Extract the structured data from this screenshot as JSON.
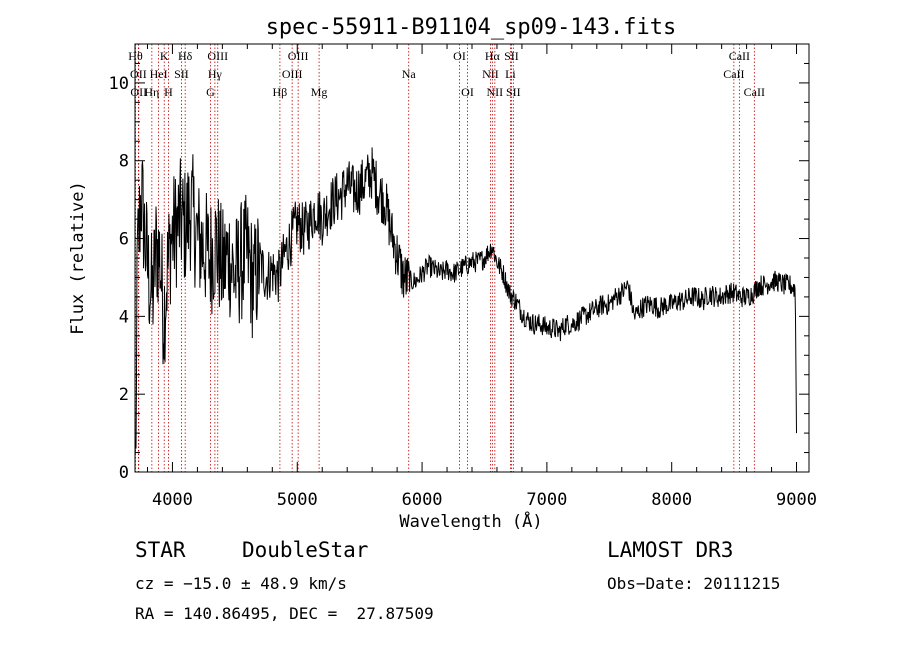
{
  "chart_data": {
    "type": "line",
    "title": "spec-55911-B91104_sp09-143.fits",
    "xlabel": "Wavelength (Å)",
    "ylabel": "Flux (relative)",
    "xlim": [
      3700,
      9100
    ],
    "ylim": [
      0,
      11
    ],
    "xticks": [
      4000,
      5000,
      6000,
      7000,
      8000,
      9000
    ],
    "yticks": [
      0,
      2,
      4,
      6,
      8,
      10
    ],
    "series": [
      {
        "name": "flux",
        "x": [
          3700,
          3720,
          3750,
          3780,
          3810,
          3840,
          3870,
          3900,
          3930,
          3960,
          3990,
          4020,
          4060,
          4100,
          4150,
          4200,
          4250,
          4300,
          4350,
          4400,
          4450,
          4500,
          4550,
          4600,
          4650,
          4700,
          4750,
          4800,
          4850,
          4900,
          4950,
          5000,
          5050,
          5100,
          5150,
          5200,
          5250,
          5300,
          5350,
          5400,
          5450,
          5500,
          5550,
          5600,
          5650,
          5700,
          5750,
          5800,
          5850,
          5900,
          5950,
          6000,
          6050,
          6100,
          6150,
          6200,
          6250,
          6300,
          6350,
          6400,
          6450,
          6500,
          6560,
          6600,
          6650,
          6700,
          6750,
          6800,
          6850,
          6900,
          6950,
          7000,
          7050,
          7100,
          7150,
          7200,
          7250,
          7300,
          7350,
          7400,
          7450,
          7500,
          7550,
          7600,
          7650,
          7700,
          7750,
          7800,
          7850,
          7900,
          7950,
          8000,
          8050,
          8100,
          8150,
          8200,
          8250,
          8300,
          8350,
          8400,
          8450,
          8500,
          8550,
          8600,
          8650,
          8700,
          8750,
          8800,
          8850,
          8900,
          8950,
          8990,
          9000
        ],
        "y": [
          0.3,
          5.5,
          7.2,
          6.0,
          5.0,
          4.5,
          5.8,
          5.5,
          4.0,
          5.2,
          6.0,
          6.2,
          6.5,
          6.3,
          6.8,
          6.0,
          5.8,
          5.5,
          5.9,
          5.2,
          5.6,
          5.0,
          5.4,
          5.6,
          4.8,
          5.4,
          5.0,
          5.2,
          5.0,
          5.6,
          6.0,
          6.4,
          6.2,
          6.4,
          6.8,
          6.5,
          6.8,
          7.0,
          7.1,
          7.4,
          7.2,
          7.3,
          7.5,
          7.7,
          7.2,
          7.0,
          6.2,
          5.6,
          5.0,
          4.9,
          4.9,
          5.1,
          5.3,
          5.2,
          5.1,
          5.2,
          5.1,
          5.2,
          5.3,
          5.4,
          5.4,
          5.5,
          5.8,
          5.4,
          5.1,
          4.6,
          4.4,
          4.1,
          3.9,
          3.8,
          3.8,
          3.7,
          3.7,
          3.6,
          3.8,
          3.8,
          3.9,
          4.0,
          4.1,
          4.2,
          4.3,
          4.3,
          4.5,
          4.6,
          4.8,
          4.0,
          4.2,
          4.3,
          4.3,
          4.2,
          4.3,
          4.3,
          4.4,
          4.4,
          4.5,
          4.5,
          4.4,
          4.6,
          4.5,
          4.5,
          4.6,
          4.6,
          4.5,
          4.5,
          4.6,
          4.8,
          4.8,
          4.9,
          4.9,
          4.8,
          4.8,
          4.7,
          1.0
        ]
      }
    ],
    "spectral_lines": [
      {
        "label": "Hθ",
        "x": 3704,
        "row": 0
      },
      {
        "label": "K",
        "x": 3934,
        "row": 0
      },
      {
        "label": "Hδ",
        "x": 4102,
        "row": 0
      },
      {
        "label": "OIII",
        "x": 4363,
        "row": 0
      },
      {
        "label": "OIII",
        "x": 5007,
        "row": 0
      },
      {
        "label": "OI",
        "x": 6300,
        "row": 0
      },
      {
        "label": "Hα",
        "x": 6563,
        "row": 0
      },
      {
        "label": "SII",
        "x": 6716,
        "row": 0
      },
      {
        "label": "CaII",
        "x": 8542,
        "row": 0
      },
      {
        "label": "OII",
        "x": 3727,
        "row": 1
      },
      {
        "label": "HeI",
        "x": 3889,
        "row": 1
      },
      {
        "label": "SII",
        "x": 4072,
        "row": 1
      },
      {
        "label": "Hγ",
        "x": 4340,
        "row": 1
      },
      {
        "label": "OIII",
        "x": 4959,
        "row": 1
      },
      {
        "label": "Na",
        "x": 5893,
        "row": 1
      },
      {
        "label": "NII",
        "x": 6548,
        "row": 1
      },
      {
        "label": "Li",
        "x": 6708,
        "row": 1
      },
      {
        "label": "CaII",
        "x": 8498,
        "row": 1
      },
      {
        "label": "OII",
        "x": 3730,
        "row": 2
      },
      {
        "label": "Hη",
        "x": 3835,
        "row": 2
      },
      {
        "label": "H",
        "x": 3968,
        "row": 2
      },
      {
        "label": "G",
        "x": 4305,
        "row": 2
      },
      {
        "label": "Hβ",
        "x": 4861,
        "row": 2
      },
      {
        "label": "Mg",
        "x": 5175,
        "row": 2
      },
      {
        "label": "OI",
        "x": 6364,
        "row": 2
      },
      {
        "label": "NII",
        "x": 6583,
        "row": 2
      },
      {
        "label": "SII",
        "x": 6731,
        "row": 2
      },
      {
        "label": "CaII",
        "x": 8662,
        "row": 2
      }
    ],
    "grid": false
  },
  "info": {
    "object_class": "STAR",
    "subclass": "DoubleStar",
    "survey": "LAMOST DR3",
    "redshift": "cz = −15.0 ± 48.9 km/s",
    "obs_date": "Obs−Date: 20111215",
    "coords": "RA = 140.86495, DEC =  27.87509"
  },
  "colors": {
    "spectrum": "#000000",
    "line_markers": "#c00000",
    "axes": "#000000",
    "background": "#ffffff"
  }
}
